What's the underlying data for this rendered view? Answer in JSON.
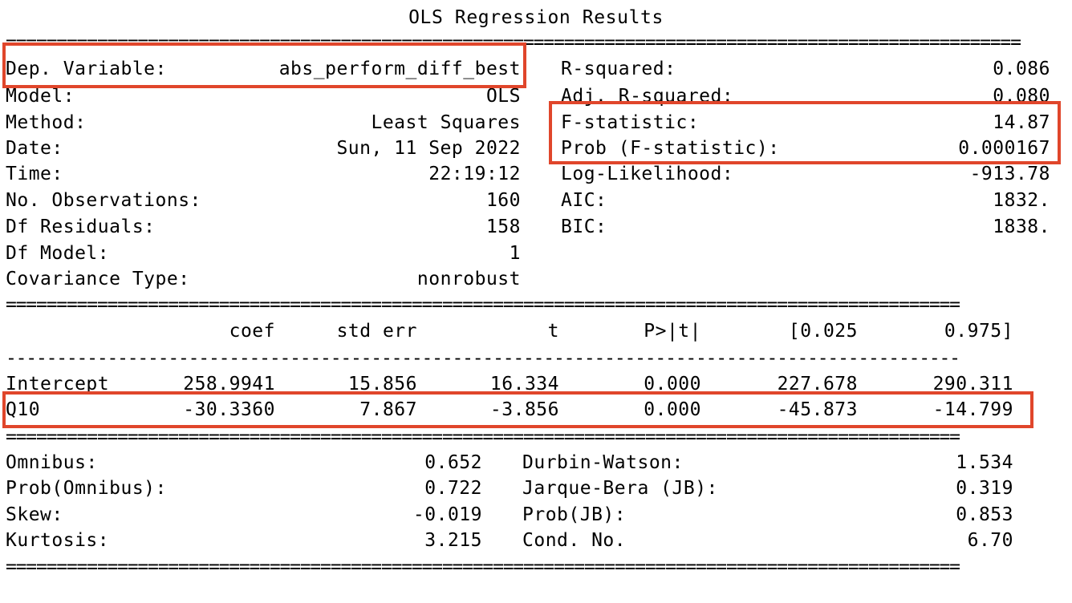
{
  "title": "OLS Regression Results",
  "top_left": [
    {
      "label": "Dep. Variable:",
      "value": "abs_perform_diff_best"
    },
    {
      "label": "Model:",
      "value": "OLS"
    },
    {
      "label": "Method:",
      "value": "Least Squares"
    },
    {
      "label": "Date:",
      "value": "Sun, 11 Sep 2022"
    },
    {
      "label": "Time:",
      "value": "22:19:12"
    },
    {
      "label": "No. Observations:",
      "value": "160"
    },
    {
      "label": "Df Residuals:",
      "value": "158"
    },
    {
      "label": "Df Model:",
      "value": "1"
    },
    {
      "label": "Covariance Type:",
      "value": "nonrobust"
    }
  ],
  "top_right": [
    {
      "label": "R-squared:",
      "value": "0.086"
    },
    {
      "label": "Adj. R-squared:",
      "value": "0.080"
    },
    {
      "label": "F-statistic:",
      "value": "14.87"
    },
    {
      "label": "Prob (F-statistic):",
      "value": "0.000167"
    },
    {
      "label": "Log-Likelihood:",
      "value": "-913.78"
    },
    {
      "label": "AIC:",
      "value": "1832."
    },
    {
      "label": "BIC:",
      "value": "1838."
    }
  ],
  "coef_header": [
    "coef",
    "std err",
    "t",
    "P>|t|",
    "[0.025",
    "0.975]"
  ],
  "coef_rows": [
    {
      "name": "Intercept",
      "values": [
        "258.9941",
        "15.856",
        "16.334",
        "0.000",
        "227.678",
        "290.311"
      ]
    },
    {
      "name": "Q10",
      "values": [
        "-30.3360",
        "7.867",
        "-3.856",
        "0.000",
        "-45.873",
        "-14.799"
      ]
    }
  ],
  "bottom_left": [
    {
      "label": "Omnibus:",
      "value": "0.652"
    },
    {
      "label": "Prob(Omnibus):",
      "value": "0.722"
    },
    {
      "label": "Skew:",
      "value": "-0.019"
    },
    {
      "label": "Kurtosis:",
      "value": "3.215"
    }
  ],
  "bottom_right": [
    {
      "label": "Durbin-Watson:",
      "value": "1.534"
    },
    {
      "label": "Jarque-Bera (JB):",
      "value": "0.319"
    },
    {
      "label": "Prob(JB):",
      "value": "0.853"
    },
    {
      "label": "Cond. No.",
      "value": "6.70"
    }
  ],
  "colors": {
    "highlight_box": "#e0462b",
    "text": "#000000",
    "background": "#ffffff"
  }
}
